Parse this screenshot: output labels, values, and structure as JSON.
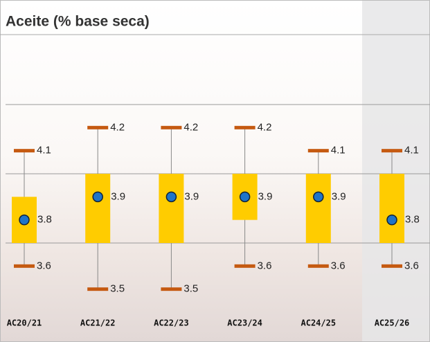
{
  "chart_data": {
    "type": "box",
    "title": "Aceite (% base seca)",
    "categories": [
      "AC20/21",
      "AC21/22",
      "AC22/23",
      "AC23/24",
      "AC24/25",
      "AC25/26"
    ],
    "whisker_low": [
      3.6,
      3.5,
      3.5,
      3.6,
      3.6,
      3.6
    ],
    "box_low": [
      3.7,
      3.7,
      3.7,
      3.8,
      3.7,
      3.7
    ],
    "box_high": [
      3.9,
      4.0,
      4.0,
      4.0,
      4.0,
      4.0
    ],
    "whisker_high": [
      4.1,
      4.2,
      4.2,
      4.2,
      4.1,
      4.1
    ],
    "mean": [
      3.8,
      3.9,
      3.9,
      3.9,
      3.9,
      3.8
    ],
    "box_color": "#ffcc00",
    "cap_color": "#c55a11",
    "mean_color": "#1f74c8",
    "ylim": [
      3.4,
      4.6
    ],
    "yticks": [
      3.7,
      4.0,
      4.3
    ],
    "grid": true
  }
}
